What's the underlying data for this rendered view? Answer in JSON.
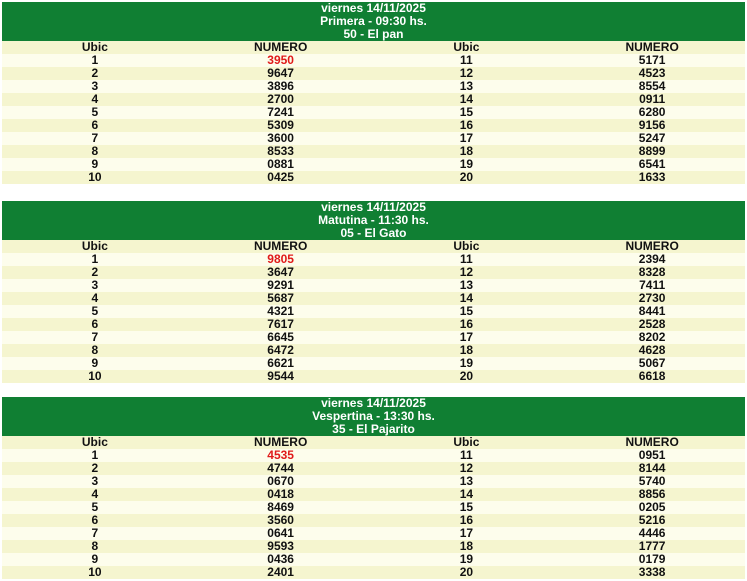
{
  "colors": {
    "header_bg": "#107f33",
    "row_alt": "#f5f5cf",
    "row_light": "#fdfdec",
    "first_prize": "#e01a1a"
  },
  "columns": [
    "Ubic",
    "NUMERO",
    "Ubic",
    "NUMERO"
  ],
  "draws": [
    {
      "date": "viernes 14/11/2025",
      "session": "Primera - 09:30 hs.",
      "result": "50 - El pan",
      "numbers": [
        "3950",
        "9647",
        "3896",
        "2700",
        "7241",
        "5309",
        "3600",
        "8533",
        "0881",
        "0425",
        "5171",
        "4523",
        "8554",
        "0911",
        "6280",
        "9156",
        "5247",
        "8899",
        "6541",
        "1633"
      ]
    },
    {
      "date": "viernes 14/11/2025",
      "session": "Matutina - 11:30 hs.",
      "result": "05 - El Gato",
      "numbers": [
        "9805",
        "3647",
        "9291",
        "5687",
        "4321",
        "7617",
        "6645",
        "6472",
        "6621",
        "9544",
        "2394",
        "8328",
        "7411",
        "2730",
        "8441",
        "2528",
        "8202",
        "4628",
        "5067",
        "6618"
      ]
    },
    {
      "date": "viernes 14/11/2025",
      "session": "Vespertina - 13:30 hs.",
      "result": "35 - El Pajarito",
      "numbers": [
        "4535",
        "4744",
        "0670",
        "0418",
        "8469",
        "3560",
        "0641",
        "9593",
        "0436",
        "2401",
        "0951",
        "8144",
        "5740",
        "8856",
        "0205",
        "5216",
        "4446",
        "1777",
        "0179",
        "3338"
      ]
    }
  ]
}
